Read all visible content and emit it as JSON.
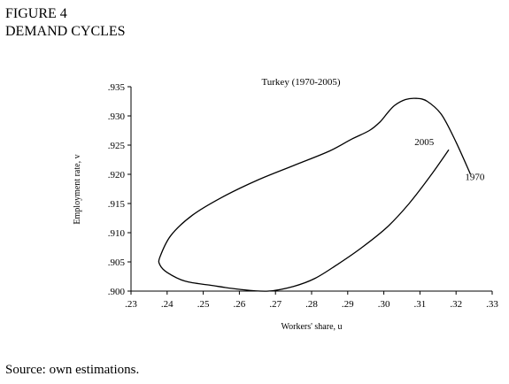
{
  "figure_number": "FIGURE 4",
  "figure_title": "DEMAND CYCLES",
  "source": "Source: own estimations.",
  "chart_data": {
    "type": "line",
    "title": "Turkey (1970-2005)",
    "xlabel": "Workers' share, u",
    "ylabel": "Employment rate, v",
    "xlim": [
      0.23,
      0.33
    ],
    "ylim": [
      0.9,
      0.935
    ],
    "grid": false,
    "x_ticks": [
      ".23",
      ".24",
      ".25",
      ".26",
      ".27",
      ".28",
      ".29",
      ".30",
      ".31",
      ".32",
      ".33"
    ],
    "y_ticks": [
      ".900",
      ".905",
      ".910",
      ".915",
      ".920",
      ".925",
      ".930",
      ".935"
    ],
    "series": [
      {
        "x": [
          0.324,
          0.32,
          0.316,
          0.312,
          0.309,
          0.306,
          0.303,
          0.301,
          0.299,
          0.296,
          0.291,
          0.285,
          0.275,
          0.265,
          0.255,
          0.247,
          0.241,
          0.238,
          0.238,
          0.24,
          0.245,
          0.252,
          0.26,
          0.268,
          0.275,
          0.281,
          0.287,
          0.294,
          0.301,
          0.307,
          0.313,
          0.318
        ],
        "y": [
          0.92,
          0.9255,
          0.9302,
          0.9325,
          0.933,
          0.9328,
          0.9318,
          0.9305,
          0.929,
          0.9275,
          0.926,
          0.924,
          0.9215,
          0.919,
          0.916,
          0.913,
          0.9095,
          0.9058,
          0.9045,
          0.9032,
          0.9017,
          0.901,
          0.9003,
          0.9,
          0.9008,
          0.9022,
          0.9045,
          0.9075,
          0.911,
          0.915,
          0.9198,
          0.9242
        ]
      }
    ],
    "annotations": [
      {
        "text": "1970",
        "x": 0.3225,
        "y": 0.919
      },
      {
        "text": "2005",
        "x": 0.3085,
        "y": 0.925
      }
    ]
  }
}
